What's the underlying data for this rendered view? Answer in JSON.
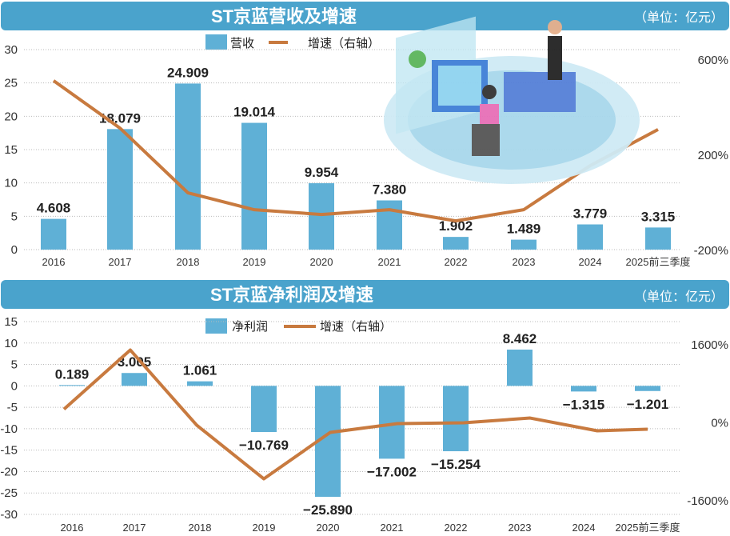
{
  "colors": {
    "bar": "#5fb0d6",
    "line": "#c87a3f",
    "header": "#4aa3cc"
  },
  "chart_data": [
    {
      "type": "bar",
      "title": "ST京蓝营收及增速",
      "unit": "（单位：亿元）",
      "legend": {
        "bar": "营收",
        "line": "增速（右轴）"
      },
      "categories": [
        "2016",
        "2017",
        "2018",
        "2019",
        "2020",
        "2021",
        "2022",
        "2023",
        "2024",
        "2025前三季度"
      ],
      "values": [
        4.608,
        18.079,
        24.909,
        19.014,
        9.954,
        7.38,
        1.902,
        1.489,
        3.779,
        3.315
      ],
      "labels": [
        "4.608",
        "18.079",
        "24.909",
        "19.014",
        "9.954",
        "7.380",
        "1.902",
        "1.489",
        "3.779",
        "3.315"
      ],
      "growth": [
        513,
        314,
        42,
        -29,
        -49,
        -29,
        -76,
        -29,
        156,
        308
      ],
      "ylim": [
        0,
        30
      ],
      "yticks": [
        "30",
        "25",
        "20",
        "15",
        "10",
        "5",
        "0"
      ],
      "y2ticks": [
        "600%",
        "200%",
        "-200%"
      ],
      "y2lim": [
        -200,
        600
      ]
    },
    {
      "type": "bar",
      "title": "ST京蓝净利润及增速",
      "unit": "（单位：亿元）",
      "legend": {
        "bar": "净利润",
        "line": "增速（右轴）"
      },
      "categories": [
        "2016",
        "2017",
        "2018",
        "2019",
        "2020",
        "2021",
        "2022",
        "2023",
        "2024",
        "2025前三季度"
      ],
      "values": [
        0.189,
        3.005,
        1.061,
        -10.769,
        -25.89,
        -17.002,
        -15.254,
        8.462,
        -1.315,
        -1.201
      ],
      "labels": [
        "0.189",
        "3.005",
        "1.061",
        "−10.769",
        "−25.890",
        "−17.002",
        "−15.254",
        "8.462",
        "−1.315",
        "−1.201"
      ],
      "growth": [
        279,
        1493,
        -49,
        -1149,
        -197,
        -16,
        0,
        98,
        -164,
        -131
      ],
      "ylim": [
        -30,
        15
      ],
      "yticks": [
        "15",
        "10",
        "5",
        "0",
        "-5",
        "-10",
        "-15",
        "-20",
        "-25",
        "-30"
      ],
      "y2ticks": [
        "1600%",
        "0%",
        "-1600%"
      ],
      "y2lim": [
        -1600,
        1600
      ]
    }
  ]
}
